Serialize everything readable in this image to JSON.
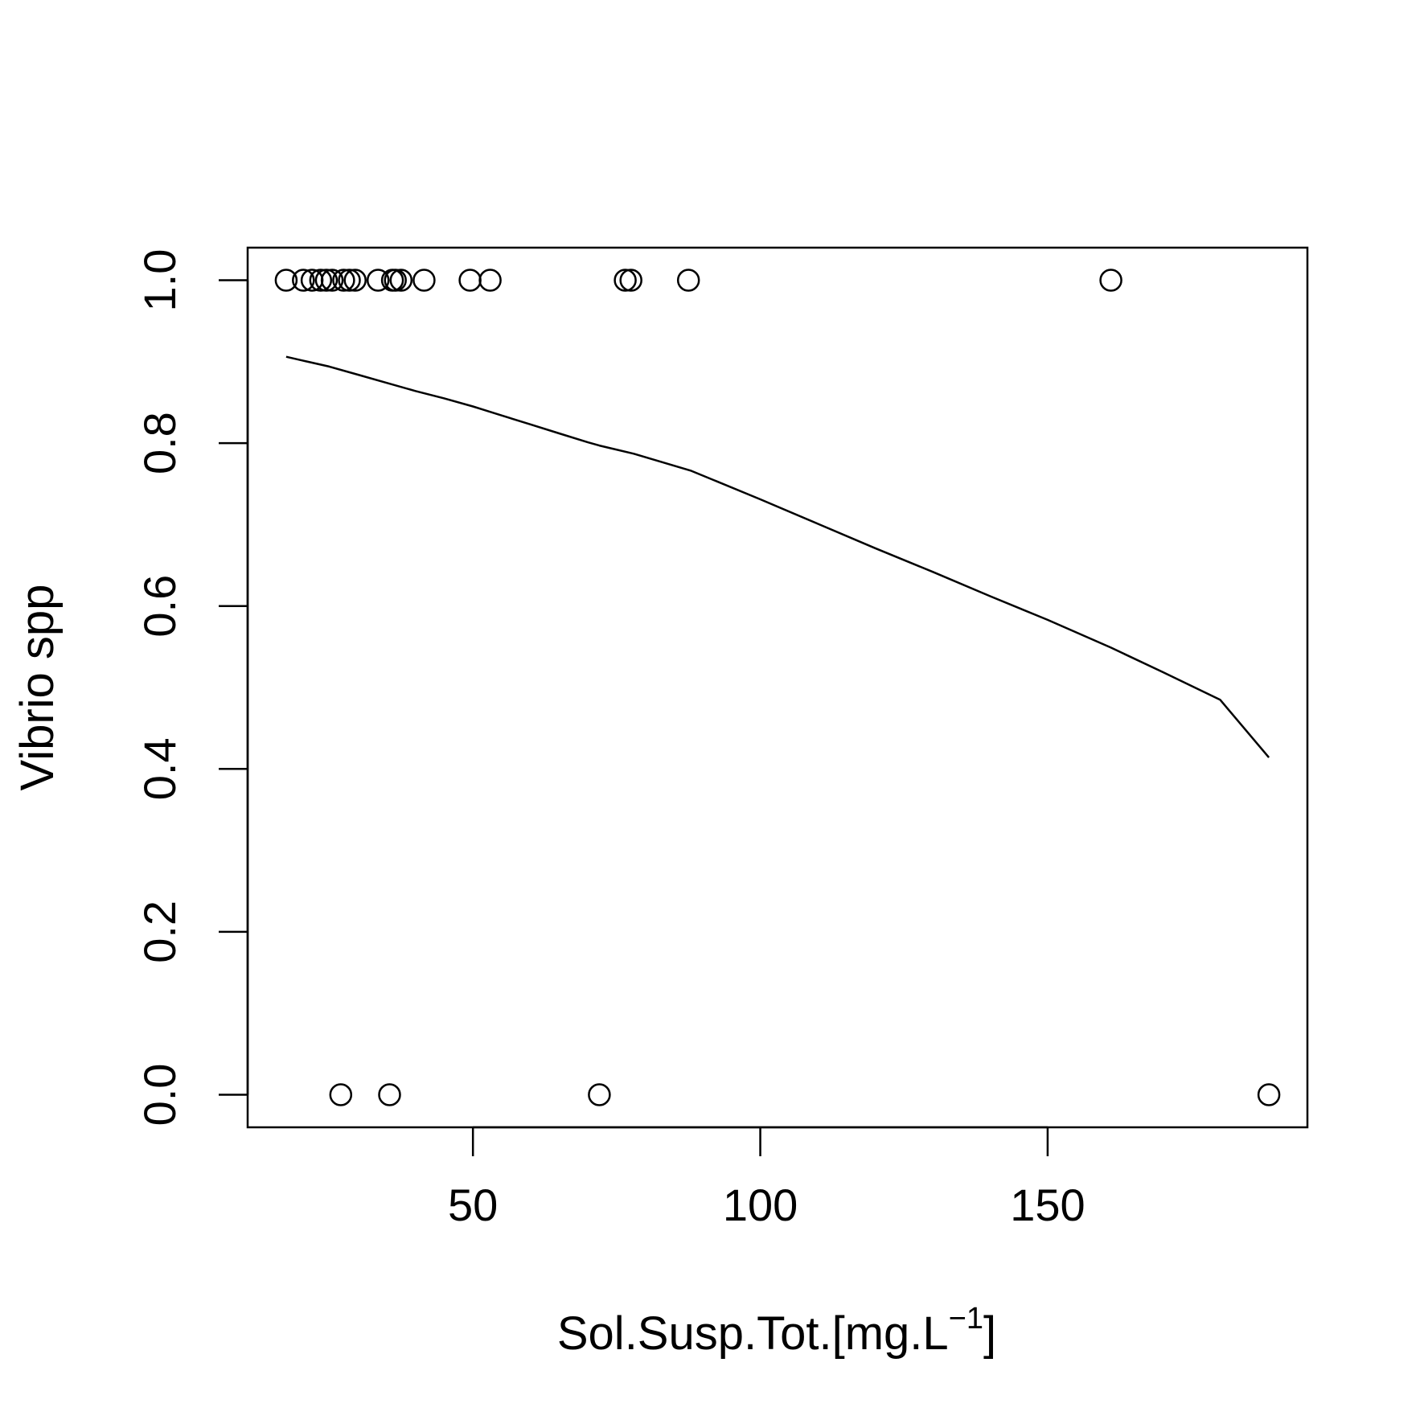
{
  "chart_data": {
    "type": "scatter",
    "title": "",
    "xlabel": "Sol.Susp.Tot.[mg.L",
    "xlabel_superscript": "−1",
    "xlabel_suffix": "]",
    "ylabel": "Vibrio spp",
    "xlim": [
      10.8,
      195.2
    ],
    "ylim": [
      -0.04,
      1.04
    ],
    "xticks": [
      50,
      100,
      150
    ],
    "xtick_labels": [
      "50",
      "100",
      "150"
    ],
    "yticks": [
      0,
      0.2,
      0.4,
      0.6,
      0.8,
      1
    ],
    "ytick_labels": [
      "0.0",
      "0.2",
      "0.4",
      "0.6",
      "0.8",
      "1.0"
    ],
    "grid": false,
    "legend": "none",
    "series": [
      {
        "kind": "points",
        "marker": "open-circle",
        "x": [
          17.5,
          20.5,
          22,
          23.5,
          24.5,
          25.5,
          27.5,
          28.5,
          29.5,
          33.5,
          36,
          36.5,
          37.5,
          41.5,
          49.5,
          53,
          76.5,
          77.5,
          87.5,
          161,
          27,
          35.5,
          72,
          188.5
        ],
        "y": [
          1,
          1,
          1,
          1,
          1,
          1,
          1,
          1,
          1,
          1,
          1,
          1,
          1,
          1,
          1,
          1,
          1,
          1,
          1,
          1,
          0,
          0,
          0,
          0
        ]
      },
      {
        "kind": "line",
        "x": [
          17.5,
          20,
          25,
          30,
          35,
          40,
          45,
          50,
          55,
          60,
          65,
          70,
          72,
          78,
          88,
          100,
          110,
          120,
          130,
          140,
          150,
          161,
          170,
          180,
          188.5
        ],
        "y": [
          0.906,
          0.902,
          0.894,
          0.884,
          0.874,
          0.864,
          0.855,
          0.845,
          0.834,
          0.823,
          0.812,
          0.801,
          0.797,
          0.787,
          0.766,
          0.731,
          0.701,
          0.671,
          0.642,
          0.612,
          0.583,
          0.549,
          0.519,
          0.485,
          0.414
        ]
      }
    ]
  }
}
